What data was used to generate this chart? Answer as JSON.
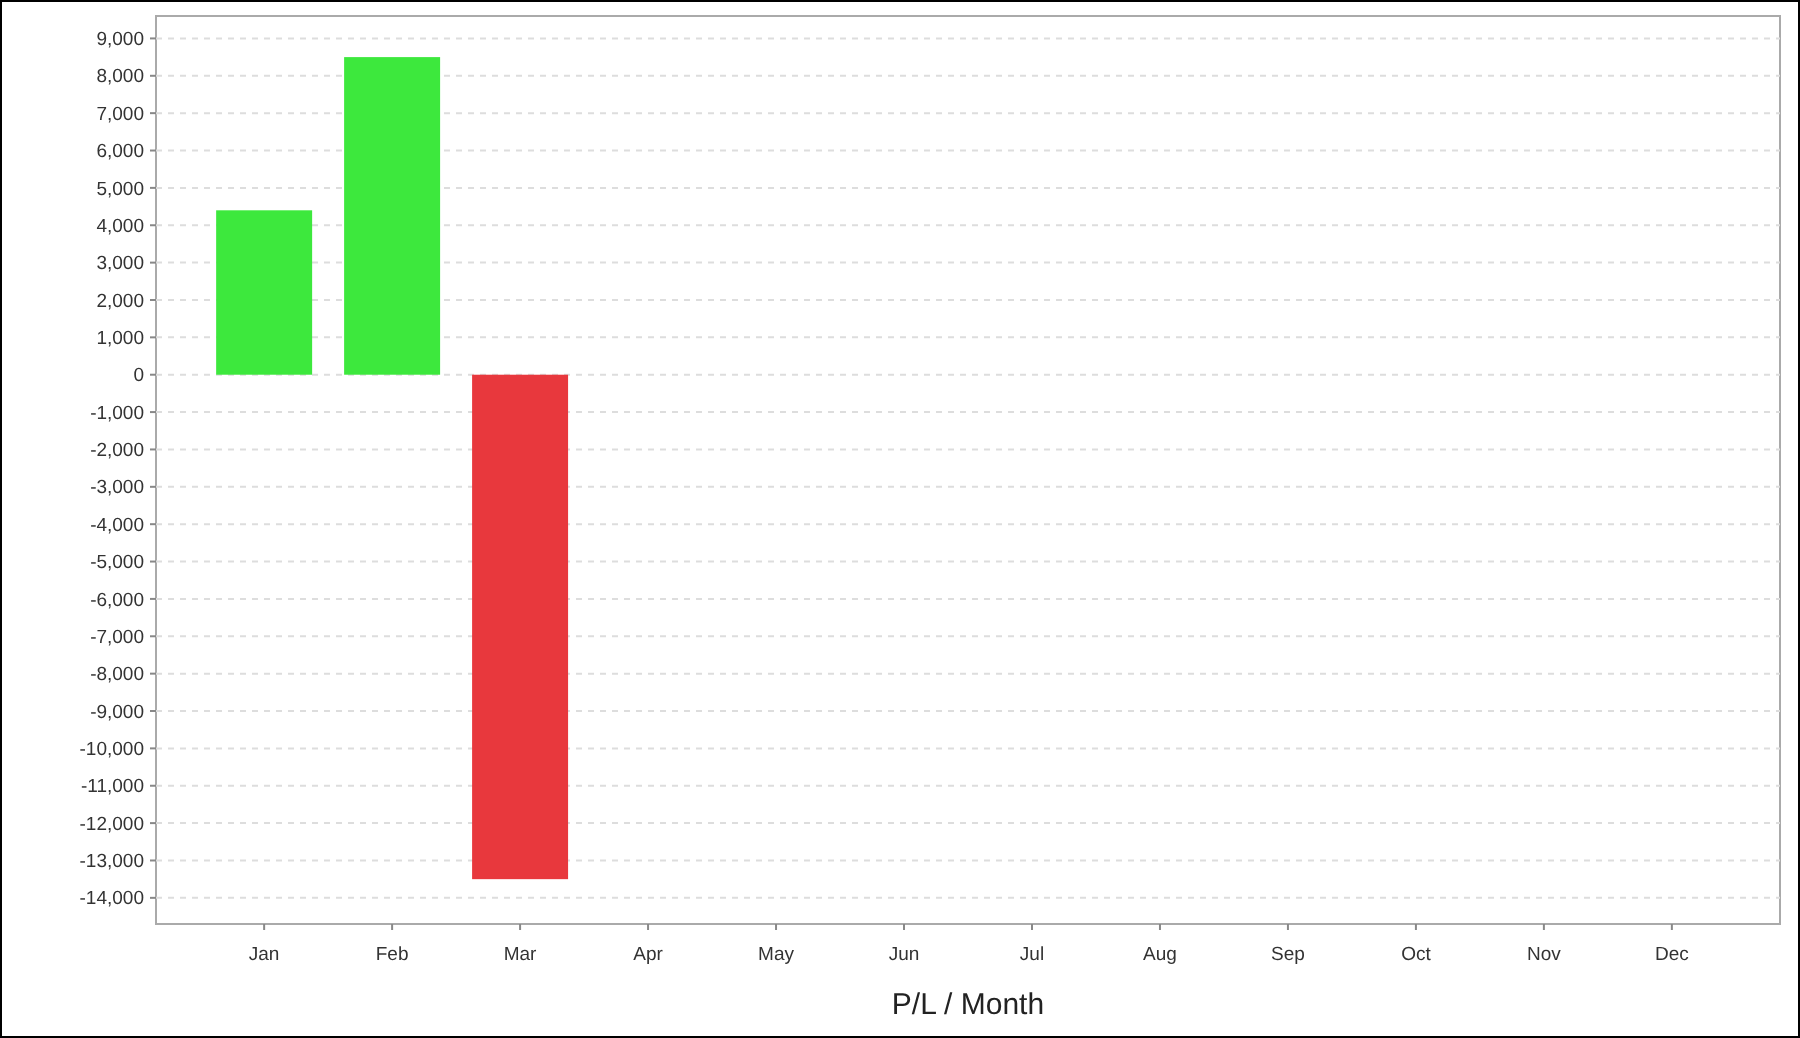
{
  "chart_data": {
    "type": "bar",
    "xlabel": "P/L / Month",
    "categories": [
      "Jan",
      "Feb",
      "Mar",
      "Apr",
      "May",
      "Jun",
      "Jul",
      "Aug",
      "Sep",
      "Oct",
      "Nov",
      "Dec"
    ],
    "values": [
      4400,
      8500,
      -13500,
      null,
      null,
      null,
      null,
      null,
      null,
      null,
      null,
      null
    ],
    "colors": [
      "#3de83d",
      "#3de83d",
      "#e8383d",
      null,
      null,
      null,
      null,
      null,
      null,
      null,
      null,
      null
    ],
    "ylim": [
      -14700,
      9600
    ],
    "yticks": [
      {
        "value": 9000,
        "label": "9,000"
      },
      {
        "value": 8000,
        "label": "8,000"
      },
      {
        "value": 7000,
        "label": "7,000"
      },
      {
        "value": 6000,
        "label": "6,000"
      },
      {
        "value": 5000,
        "label": "5,000"
      },
      {
        "value": 4000,
        "label": "4,000"
      },
      {
        "value": 3000,
        "label": "3,000"
      },
      {
        "value": 2000,
        "label": "2,000"
      },
      {
        "value": 1000,
        "label": "1,000"
      },
      0,
      {
        "value": -1000,
        "label": "-1,000"
      },
      {
        "value": -2000,
        "label": "-2,000"
      },
      {
        "value": -3000,
        "label": "-3,000"
      },
      {
        "value": -4000,
        "label": "-4,000"
      },
      {
        "value": -5000,
        "label": "-5,000"
      },
      {
        "value": -6000,
        "label": "-6,000"
      },
      {
        "value": -7000,
        "label": "-7,000"
      },
      {
        "value": -8000,
        "label": "-8,000"
      },
      {
        "value": -9000,
        "label": "-9,000"
      },
      {
        "value": -10000,
        "label": "-10,000"
      },
      {
        "value": -11000,
        "label": "-11,000"
      },
      {
        "value": -12000,
        "label": "-12,000"
      },
      {
        "value": -13000,
        "label": "-13,000"
      },
      {
        "value": -14000,
        "label": "-14,000"
      }
    ],
    "grid": "y"
  }
}
